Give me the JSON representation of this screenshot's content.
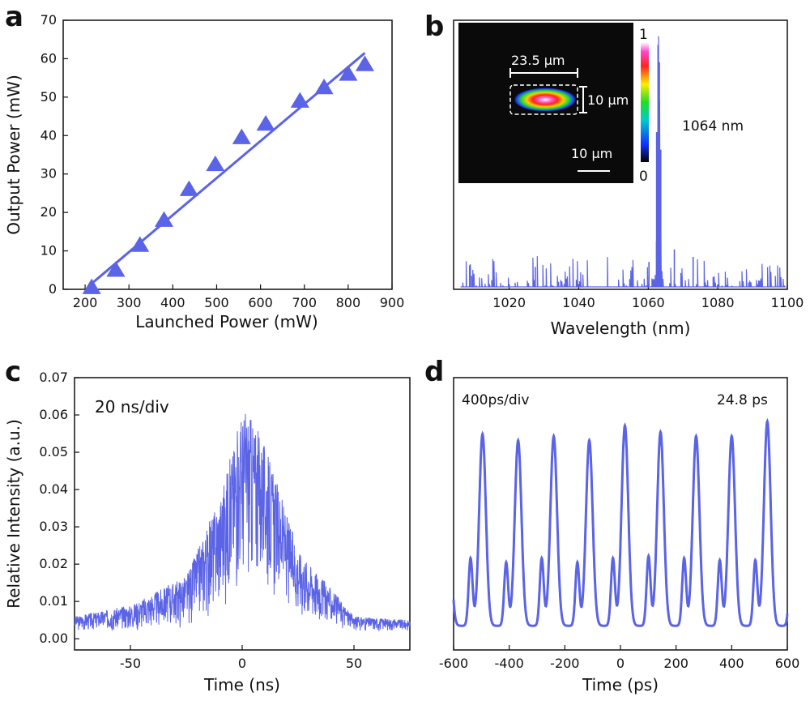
{
  "colors": {
    "series": "#5b63e6",
    "axis": "#111111",
    "inset_bg": "#0a0a0a"
  },
  "panels": {
    "a": "a",
    "b": "b",
    "c": "c",
    "d": "d"
  },
  "chart_data": [
    {
      "id": "a",
      "type": "scatter",
      "title": "",
      "xlabel": "Launched Power (mW)",
      "ylabel": "Output Power (mW)",
      "xlim": [
        150,
        900
      ],
      "ylim": [
        0,
        70
      ],
      "xticks": [
        200,
        300,
        400,
        500,
        600,
        700,
        800,
        900
      ],
      "yticks": [
        0,
        10,
        20,
        30,
        40,
        50,
        60,
        70
      ],
      "series": [
        {
          "name": "measured",
          "marker": "triangle",
          "x": [
            215,
            270,
            325,
            380,
            437,
            497,
            557,
            612,
            690,
            745,
            800,
            838
          ],
          "y": [
            0.5,
            5,
            11.5,
            18,
            26,
            32.5,
            39.5,
            43,
            49,
            52.5,
            56,
            58.5
          ]
        },
        {
          "name": "linear fit",
          "marker": "line",
          "x": [
            215,
            838
          ],
          "y": [
            1.5,
            61.5
          ]
        }
      ]
    },
    {
      "id": "b",
      "type": "line",
      "title": "",
      "xlabel": "Wavelength (nm)",
      "ylabel": "",
      "xlim": [
        1004,
        1100
      ],
      "ylim": [
        0,
        1
      ],
      "xticks": [
        1020,
        1040,
        1060,
        1080,
        1100
      ],
      "peak_label": "1064 nm",
      "series": [
        {
          "name": "spectrum",
          "x": [
            1062.4,
            1062.8,
            1063.2,
            1063.6,
            1067.5,
            1072.9,
            1060.2,
            1008.8,
            1027.5
          ],
          "y": [
            0.62,
            0.97,
            0.9,
            0.55,
            0.15,
            0.12,
            0.1,
            0.09,
            0.08
          ]
        }
      ],
      "inset": {
        "colorbar_max": "1",
        "colorbar_min": "0",
        "width_label": "23.5 μm",
        "height_label": "10 μm",
        "scalebar_label": "10 μm"
      }
    },
    {
      "id": "c",
      "type": "area",
      "title": "",
      "xlabel": "Time (ns)",
      "ylabel": "Relative Intensity (a.u.)",
      "xlim": [
        -75,
        75
      ],
      "ylim": [
        -0.003,
        0.07
      ],
      "xticks": [
        -50,
        0,
        50
      ],
      "yticks": [
        0.0,
        0.01,
        0.02,
        0.03,
        0.04,
        0.05,
        0.06,
        0.07
      ],
      "annotation": "20 ns/div",
      "series": [
        {
          "name": "envelope",
          "x": [
            -75,
            -50,
            -25,
            -10,
            0,
            2,
            10,
            25,
            50,
            75
          ],
          "upper": [
            0.006,
            0.009,
            0.017,
            0.038,
            0.061,
            0.062,
            0.052,
            0.024,
            0.006,
            0.005
          ],
          "lower": [
            0.002,
            0.002,
            0.003,
            0.007,
            0.013,
            0.014,
            0.012,
            0.005,
            0.002,
            0.002
          ]
        }
      ]
    },
    {
      "id": "d",
      "type": "line",
      "title": "",
      "xlabel": "Time (ps)",
      "ylabel": "",
      "xlim": [
        -600,
        600
      ],
      "ylim": [
        0,
        1
      ],
      "xticks": [
        -600,
        -400,
        -200,
        0,
        200,
        400,
        600
      ],
      "annotation_left": "400ps/div",
      "annotation_right": "24.8 ps",
      "series": [
        {
          "name": "pulse train",
          "period_ps": 128,
          "first_peak_ps": -496,
          "peak_values": [
            0.91,
            0.88,
            0.9,
            0.88,
            0.95,
            0.92,
            0.9,
            0.9,
            0.97
          ],
          "side_values": [
            0.32,
            0.3,
            0.32,
            0.3,
            0.32,
            0.33,
            0.32,
            0.31,
            0.31
          ],
          "trough_values": [
            0.02,
            0.0,
            0.01,
            0.01,
            0.0,
            0.02,
            0.02,
            0.01,
            0.02,
            0.03
          ]
        }
      ]
    }
  ]
}
